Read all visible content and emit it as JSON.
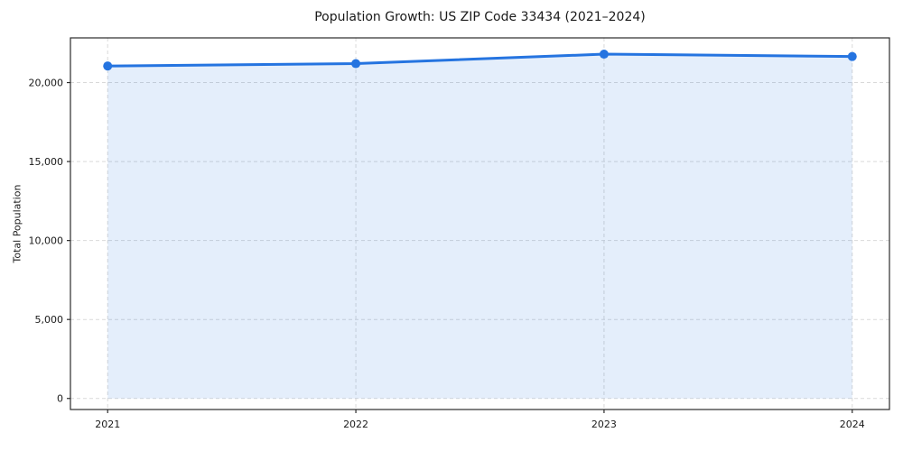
{
  "chart_data": {
    "type": "area",
    "title": "Population Growth: US ZIP Code 33434 (2021–2024)",
    "xlabel": "",
    "ylabel": "Total Population",
    "x": [
      2021,
      2022,
      2023,
      2024
    ],
    "series": [
      {
        "name": "Total Population",
        "values": [
          21050,
          21200,
          21800,
          21650
        ]
      }
    ],
    "xticks": {
      "values": [
        2021,
        2022,
        2023,
        2024
      ],
      "labels": [
        "2021",
        "2022",
        "2023",
        "2024"
      ]
    },
    "yticks": {
      "values": [
        0,
        5000,
        10000,
        15000,
        20000
      ],
      "labels": [
        "0",
        "5,000",
        "10,000",
        "15,000",
        "20,000"
      ]
    },
    "xlim": [
      2020.85,
      2024.15
    ],
    "ylim": [
      -700,
      22830
    ],
    "fill_baseline": 0,
    "grid": true,
    "legend": false,
    "style": {
      "line_color": "#2574e0",
      "marker_color": "#2574e0",
      "fill_color": "#2574e0",
      "fill_opacity": 0.12,
      "grid_color": "#d9d9d9",
      "spine_color": "#2b2b2b",
      "text_color": "#1a1a1a",
      "background": "#ffffff"
    }
  }
}
